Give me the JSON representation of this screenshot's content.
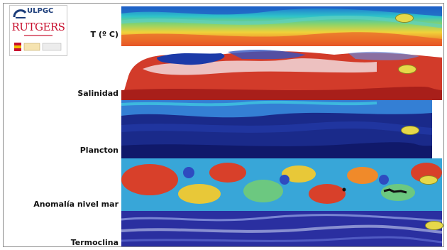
{
  "logos": {
    "ulpgc": "ULPGC",
    "rutgers": "RUTGERS"
  },
  "layers": [
    {
      "label": "T (º C)"
    },
    {
      "label": "Salinidad"
    },
    {
      "label": "Plancton"
    },
    {
      "label": "Anomalía nivel mar"
    },
    {
      "label": "Termoclina"
    }
  ],
  "colors": {
    "marker": "#e6d84a",
    "deep_blue": "#15246b",
    "red": "#c8341f",
    "cyan": "#36b3e0"
  },
  "icons": [
    "ulpgc-logo-icon",
    "rutgers-logo-icon",
    "spanish-crest-icon",
    "location-marker-icon"
  ]
}
